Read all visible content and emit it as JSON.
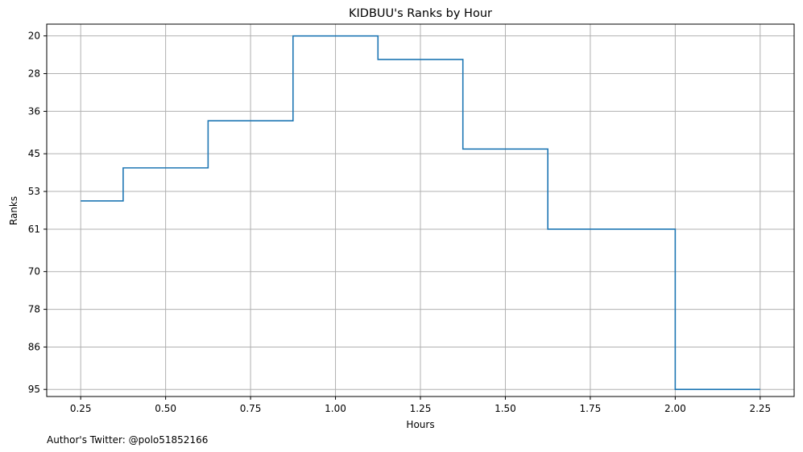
{
  "chart_data": {
    "type": "line",
    "style": "step-post",
    "title": "KIDBUU's Ranks by Hour",
    "xlabel": "Hours",
    "ylabel": "Ranks",
    "xlim": [
      0.15,
      2.35
    ],
    "ylim": [
      96.5,
      17.5
    ],
    "y_inverted": true,
    "grid": true,
    "xticks": [
      0.25,
      0.5,
      0.75,
      1.0,
      1.25,
      1.5,
      1.75,
      2.0,
      2.25
    ],
    "xtick_labels": [
      "0.25",
      "0.50",
      "0.75",
      "1.00",
      "1.25",
      "1.50",
      "1.75",
      "2.00",
      "2.25"
    ],
    "yticks": [
      20,
      28,
      36,
      45,
      53,
      61,
      70,
      78,
      86,
      95
    ],
    "ytick_labels": [
      "20",
      "28",
      "36",
      "45",
      "53",
      "61",
      "70",
      "78",
      "86",
      "95"
    ],
    "series": [
      {
        "color": "#1f77b4",
        "x": [
          0.25,
          0.375,
          0.625,
          0.875,
          1.125,
          1.375,
          1.625,
          2.0,
          2.25
        ],
        "y": [
          55,
          48,
          38,
          20,
          25,
          44,
          61,
          95,
          95
        ]
      }
    ]
  },
  "footnote": "Author's Twitter: @polo51852166"
}
